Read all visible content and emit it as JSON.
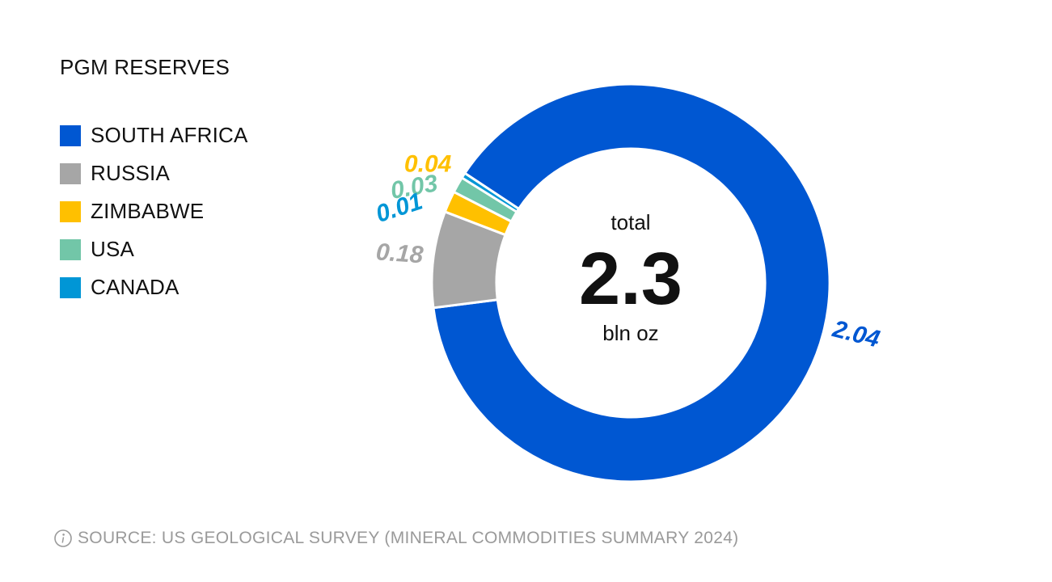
{
  "chart_data": {
    "type": "pie",
    "variant": "donut",
    "title": "PGM RESERVES",
    "categories": [
      "SOUTH AFRICA",
      "RUSSIA",
      "ZIMBABWE",
      "USA",
      "CANADA"
    ],
    "values": [
      2.04,
      0.18,
      0.04,
      0.03,
      0.01
    ],
    "value_labels": [
      "2.04",
      "0.18",
      "0.04",
      "0.03",
      "0.01"
    ],
    "colors": [
      "#0057d2",
      "#a6a6a6",
      "#ffc000",
      "#72c6a8",
      "#0096d6"
    ],
    "center": {
      "top_label": "total",
      "value": "2.3",
      "unit": "bln oz"
    },
    "legend_position": "left"
  },
  "footer": {
    "icon": "info-icon",
    "source_text": "SOURCE: US GEOLOGICAL SURVEY (MINERAL COMMODITIES SUMMARY 2024)"
  }
}
